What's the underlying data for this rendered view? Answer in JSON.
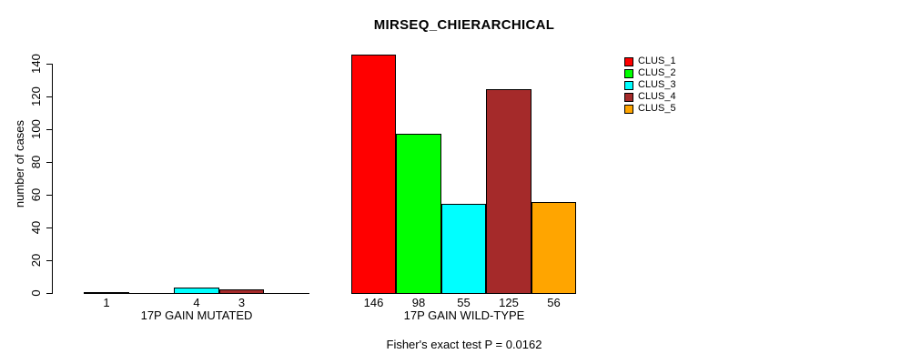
{
  "title": "MIRSEQ_CHIERARCHICAL",
  "footer_note": "Fisher's exact test P = 0.0162",
  "colors": {
    "background": "#FFFFFF",
    "axis": "#000000",
    "text": "#000000"
  },
  "chart_data": {
    "type": "bar",
    "title": "MIRSEQ_CHIERARCHICAL",
    "xlabel": "",
    "ylabel": "number of cases",
    "ylim": [
      0,
      140
    ],
    "yticks": [
      0,
      20,
      40,
      60,
      80,
      100,
      120,
      140
    ],
    "grid": false,
    "legend_position": "top-right",
    "clusters": [
      {
        "name": "CLUS_1",
        "color": "#FF0000"
      },
      {
        "name": "CLUS_2",
        "color": "#00FF00"
      },
      {
        "name": "CLUS_3",
        "color": "#00FFFF"
      },
      {
        "name": "CLUS_4",
        "color": "#A52A2A"
      },
      {
        "name": "CLUS_5",
        "color": "#FFA500"
      }
    ],
    "groups": [
      {
        "label": "17P GAIN MUTATED",
        "values": [
          1,
          0,
          4,
          3,
          0
        ],
        "bar_labels": [
          "1",
          "",
          "4",
          "3",
          ""
        ]
      },
      {
        "label": "17P GAIN WILD-TYPE",
        "values": [
          146,
          98,
          55,
          125,
          56
        ],
        "bar_labels": [
          "146",
          "98",
          "55",
          "125",
          "56"
        ]
      }
    ],
    "annotation": "Fisher's exact test P = 0.0162"
  }
}
